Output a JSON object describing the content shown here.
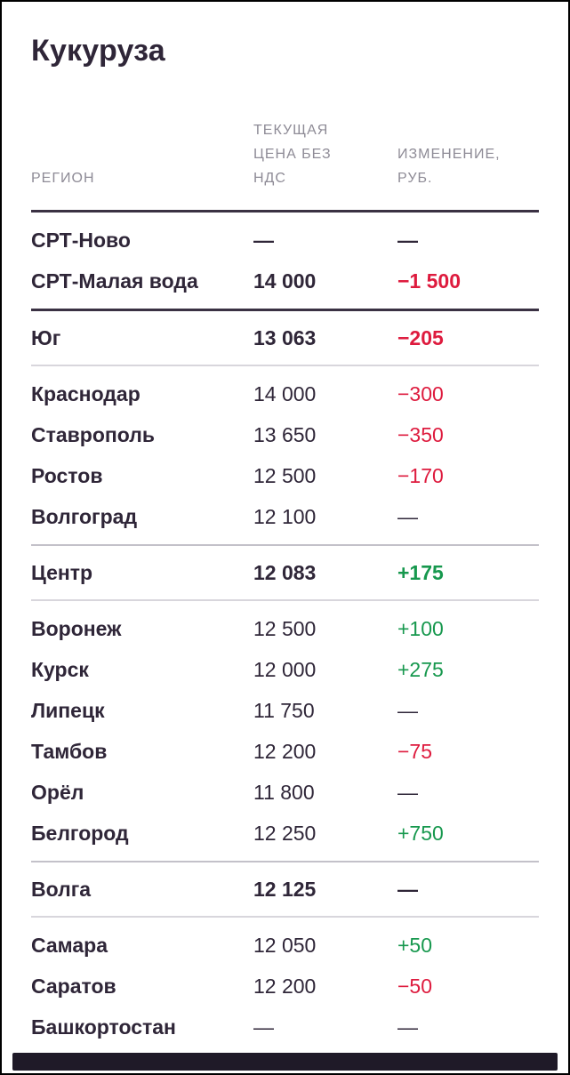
{
  "title": "Кукуруза",
  "columns": {
    "region": "РЕГИОН",
    "price": "ТЕКУЩАЯ ЦЕНА БЕЗ НДС",
    "change": "ИЗМЕНЕНИЕ, РУБ."
  },
  "colors": {
    "text_dark": "#2f2638",
    "header_gray": "#8e8b96",
    "negative_red": "#de1b3e",
    "positive_green": "#17984e",
    "divider_dark": "#3a3143",
    "divider_gray": "#c3c1c9",
    "footer_bar": "#1f1a28"
  },
  "chart_data": {
    "type": "table",
    "title": "Кукуруза",
    "columns": [
      "РЕГИОН",
      "ТЕКУЩАЯ ЦЕНА БЕЗ НДС",
      "ИЗМЕНЕНИЕ, РУБ."
    ],
    "rows": [
      {
        "region": "СРТ-Ново",
        "price": "—",
        "change": "—",
        "trend": "flat",
        "emphasis": true
      },
      {
        "region": "СРТ-Малая вода",
        "price": "14 000",
        "change": "−1 500",
        "trend": "down",
        "emphasis": true
      },
      {
        "region": "Юг",
        "price": "13 063",
        "change": "−205",
        "trend": "down",
        "emphasis": true
      },
      {
        "region": "Краснодар",
        "price": "14 000",
        "change": "−300",
        "trend": "down",
        "emphasis": false
      },
      {
        "region": "Ставрополь",
        "price": "13 650",
        "change": "−350",
        "trend": "down",
        "emphasis": false
      },
      {
        "region": "Ростов",
        "price": "12 500",
        "change": "−170",
        "trend": "down",
        "emphasis": false
      },
      {
        "region": "Волгоград",
        "price": "12 100",
        "change": "—",
        "trend": "flat",
        "emphasis": false
      },
      {
        "region": "Центр",
        "price": "12 083",
        "change": "+175",
        "trend": "up",
        "emphasis": true
      },
      {
        "region": "Воронеж",
        "price": "12 500",
        "change": "+100",
        "trend": "up",
        "emphasis": false
      },
      {
        "region": "Курск",
        "price": "12 000",
        "change": "+275",
        "trend": "up",
        "emphasis": false
      },
      {
        "region": "Липецк",
        "price": "11 750",
        "change": "—",
        "trend": "flat",
        "emphasis": false
      },
      {
        "region": "Тамбов",
        "price": "12 200",
        "change": "−75",
        "trend": "down",
        "emphasis": false
      },
      {
        "region": "Орёл",
        "price": "11 800",
        "change": "—",
        "trend": "flat",
        "emphasis": false
      },
      {
        "region": "Белгород",
        "price": "12 250",
        "change": "+750",
        "trend": "up",
        "emphasis": false
      },
      {
        "region": "Волга",
        "price": "12 125",
        "change": "—",
        "trend": "flat",
        "emphasis": true
      },
      {
        "region": "Самара",
        "price": "12 050",
        "change": "+50",
        "trend": "up",
        "emphasis": false
      },
      {
        "region": "Саратов",
        "price": "12 200",
        "change": "−50",
        "trend": "down",
        "emphasis": false
      },
      {
        "region": "Башкортостан",
        "price": "—",
        "change": "—",
        "trend": "flat",
        "emphasis": false
      }
    ]
  }
}
